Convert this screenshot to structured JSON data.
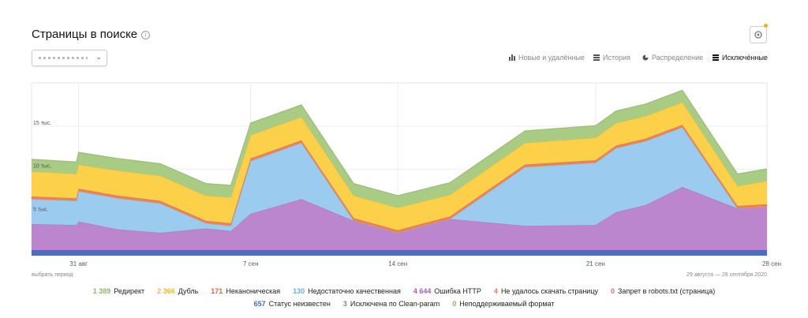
{
  "page": {
    "title": "Страницы в поиске",
    "info_icon": "i",
    "selector_chevron": "⌄",
    "period_label": "выбрать период",
    "date_range": "29 августа — 28 сентября 2020"
  },
  "tabs": [
    {
      "label": "Новые и удалённые",
      "icon": "bar-chart-icon",
      "active": false
    },
    {
      "label": "История",
      "icon": "stack-icon",
      "active": false
    },
    {
      "label": "Распределение",
      "icon": "pie-icon",
      "active": false
    },
    {
      "label": "Исключённые",
      "icon": "layers-icon",
      "active": true
    }
  ],
  "legend": [
    {
      "value": "1 389",
      "label": "Редирект",
      "color": "#8ab86a"
    },
    {
      "value": "2 366",
      "label": "Дубль",
      "color": "#f5b82e"
    },
    {
      "value": "171",
      "label": "Неканоническая",
      "color": "#e2653c"
    },
    {
      "value": "130",
      "label": "Недостаточно качественная",
      "color": "#6aaee4"
    },
    {
      "value": "4 644",
      "label": "Ошибка HTTP",
      "color": "#a85bbf"
    },
    {
      "value": "4",
      "label": "Не удалось скачать страницу",
      "color": "#e57f5c"
    },
    {
      "value": "0",
      "label": "Запрет в robots.txt (страница)",
      "color": "#e0708a"
    },
    {
      "value": "657",
      "label": "Статус неизвестен",
      "color": "#4a6fc2"
    },
    {
      "value": "3",
      "label": "Исключена по Clean-param",
      "color": "#888888"
    },
    {
      "value": "0",
      "label": "Неподдерживаемый формат",
      "color": "#8fb35a"
    }
  ],
  "chart_data": {
    "type": "area",
    "stacked": true,
    "x_ticks": [
      "31 авг",
      "7 сен",
      "14 сен",
      "21 сен",
      "28 сен"
    ],
    "y_ticks": [
      "5 тыс.",
      "10 тыс.",
      "15 тыс."
    ],
    "x": [
      "29 авг",
      "30 авг",
      "31 авг",
      "1 сен",
      "3 сен",
      "5 сен",
      "6 сен",
      "7 сен",
      "9 сен",
      "12 сен",
      "14 сен",
      "16 сен",
      "19 сен",
      "21 сен",
      "22 сен",
      "23 сен",
      "24 сен",
      "26 сен",
      "28 сен"
    ],
    "ylim": [
      0,
      20000
    ],
    "grid": true,
    "series": [
      {
        "name": "Статус неизвестен",
        "color": "#4a6fc2",
        "values": [
          650,
          650,
          650,
          650,
          650,
          650,
          650,
          650,
          650,
          650,
          650,
          650,
          650,
          650,
          650,
          650,
          650,
          650,
          650
        ]
      },
      {
        "name": "Ошибка HTTP",
        "color": "#bb86ce",
        "values": [
          3000,
          2900,
          3300,
          2400,
          2000,
          2500,
          2200,
          4200,
          5900,
          3400,
          2000,
          3600,
          2800,
          2900,
          4400,
          5200,
          7300,
          4800,
          5000
        ]
      },
      {
        "name": "Недостаточно качественная",
        "color": "#9ccbf0",
        "values": [
          2900,
          2800,
          3500,
          3600,
          3400,
          600,
          600,
          6100,
          6500,
          0,
          0,
          0,
          6800,
          7200,
          7400,
          7400,
          6900,
          0,
          0
        ]
      },
      {
        "name": "Неканоническая",
        "color": "#ef8255",
        "values": [
          300,
          300,
          300,
          300,
          300,
          300,
          300,
          300,
          300,
          300,
          300,
          300,
          300,
          300,
          300,
          300,
          300,
          300,
          300
        ]
      },
      {
        "name": "Дубль",
        "color": "#fcd149",
        "values": [
          2900,
          2800,
          2800,
          2900,
          2900,
          2900,
          3000,
          2700,
          2700,
          2600,
          2600,
          2500,
          2500,
          2600,
          2600,
          2600,
          2600,
          2300,
          2700
        ]
      },
      {
        "name": "Редирект",
        "color": "#a8cc84",
        "values": [
          1400,
          1400,
          1400,
          1400,
          1400,
          1400,
          1400,
          1400,
          1400,
          1400,
          1400,
          1400,
          1400,
          1400,
          1400,
          1400,
          1400,
          1400,
          1400
        ]
      }
    ]
  }
}
